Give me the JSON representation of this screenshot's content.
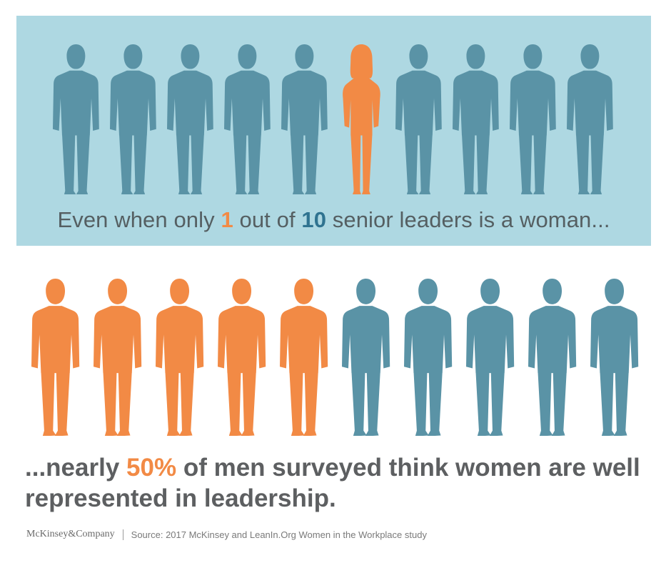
{
  "colors": {
    "panel_bg": "#aed8e2",
    "blue_figure": "#5a93a6",
    "orange_figure": "#f28a45",
    "text_gray": "#555f62",
    "number_blue": "#2f7390"
  },
  "top_panel": {
    "figures": [
      {
        "icon": "man-silhouette",
        "color": "blue"
      },
      {
        "icon": "man-silhouette",
        "color": "blue"
      },
      {
        "icon": "man-silhouette",
        "color": "blue"
      },
      {
        "icon": "man-silhouette",
        "color": "blue"
      },
      {
        "icon": "man-silhouette",
        "color": "blue"
      },
      {
        "icon": "woman-silhouette",
        "color": "orange"
      },
      {
        "icon": "man-silhouette",
        "color": "blue"
      },
      {
        "icon": "man-silhouette",
        "color": "blue"
      },
      {
        "icon": "man-silhouette",
        "color": "blue"
      },
      {
        "icon": "man-silhouette",
        "color": "blue"
      }
    ],
    "headline_pre": "Even when only ",
    "headline_num1": "1",
    "headline_mid": " out of ",
    "headline_num2": "10",
    "headline_post": " senior leaders is a woman..."
  },
  "bottom_section": {
    "figures": [
      {
        "icon": "man-silhouette",
        "color": "orange"
      },
      {
        "icon": "man-silhouette",
        "color": "orange"
      },
      {
        "icon": "man-silhouette",
        "color": "orange"
      },
      {
        "icon": "man-silhouette",
        "color": "orange"
      },
      {
        "icon": "man-silhouette",
        "color": "orange"
      },
      {
        "icon": "man-silhouette",
        "color": "blue"
      },
      {
        "icon": "man-silhouette",
        "color": "blue"
      },
      {
        "icon": "man-silhouette",
        "color": "blue"
      },
      {
        "icon": "man-silhouette",
        "color": "blue"
      },
      {
        "icon": "man-silhouette",
        "color": "blue"
      }
    ],
    "statement_pre": "...nearly ",
    "statement_pct": "50%",
    "statement_post": " of men surveyed think women are well represented in leadership."
  },
  "footer": {
    "brand": "McKinsey&Company",
    "source": "Source: 2017 McKinsey and LeanIn.Org Women in the Workplace study"
  }
}
